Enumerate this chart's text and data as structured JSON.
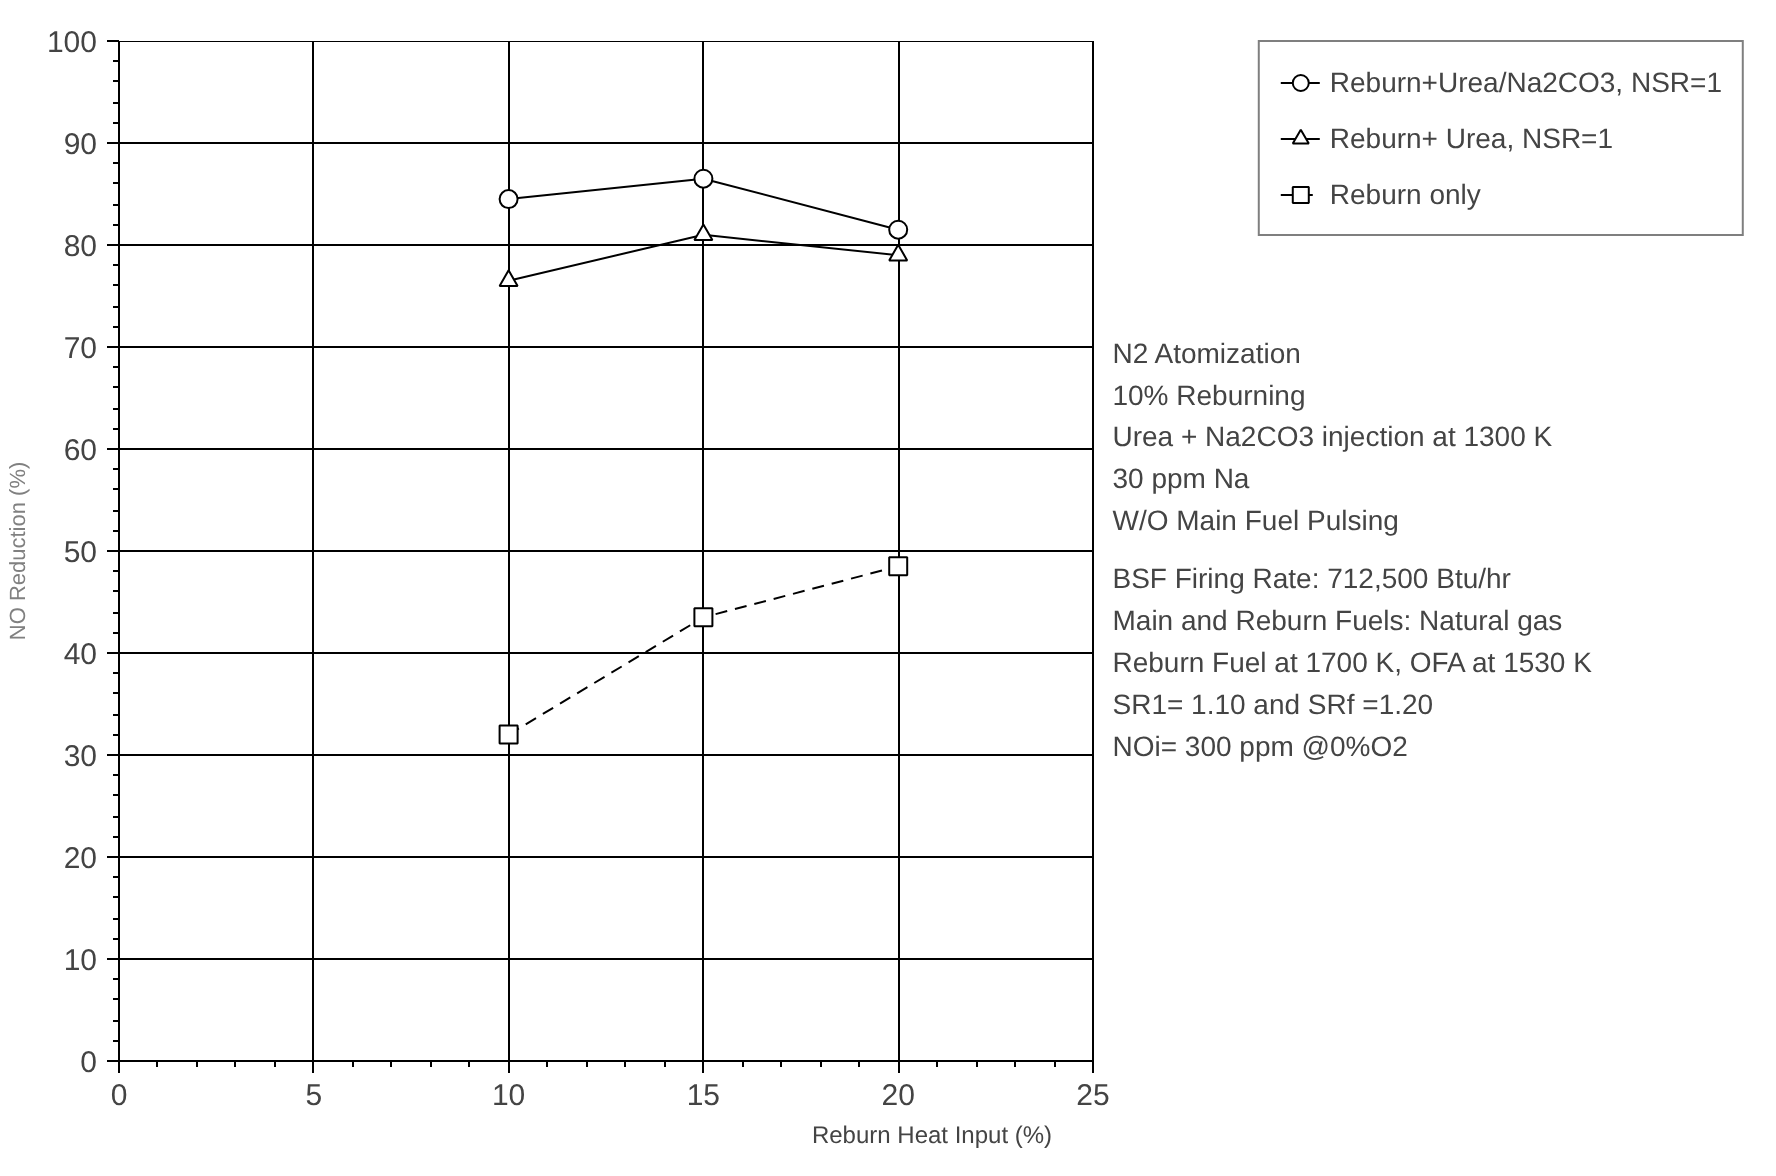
{
  "chart_data": {
    "type": "line",
    "xlabel": "Reburn Heat Input (%)",
    "ylabel": "NO Reduction (%)",
    "x": [
      10,
      15,
      20
    ],
    "series": [
      {
        "name": "Reburn+Urea/Na2CO3, NSR=1",
        "color": "#000000",
        "values": [
          84.5,
          86.5,
          81.5
        ],
        "marker": "circle",
        "line_style": "solid"
      },
      {
        "name": "Reburn+ Urea, NSR=1",
        "color": "#000000",
        "values": [
          76.5,
          81,
          79
        ],
        "marker": "triangle",
        "line_style": "solid"
      },
      {
        "name": "Reburn only",
        "color": "#000000",
        "values": [
          32,
          43.5,
          48.5
        ],
        "marker": "square",
        "line_style": "dashed"
      }
    ],
    "xlim": [
      0,
      25
    ],
    "xticks": [
      0,
      5,
      10,
      15,
      20,
      25
    ],
    "ylim": [
      0,
      100
    ],
    "yticks": [
      0,
      10,
      20,
      30,
      40,
      50,
      60,
      70,
      80,
      90,
      100
    ],
    "grid": true,
    "legend": "top right",
    "annotations": [
      "N2 Atomization",
      "10% Reburning",
      "Urea + Na2CO3 injection at 1300 K",
      "30 ppm Na",
      "W/O Main Fuel Pulsing",
      "BSF Firing Rate: 712,500 Btu/hr",
      "Main and Reburn Fuels:  Natural gas",
      "Reburn Fuel at 1700 K, OFA  at 1530 K",
      "SR1= 1.10 and SRf =1.20",
      "NOi= 300 ppm @0%O2"
    ]
  }
}
